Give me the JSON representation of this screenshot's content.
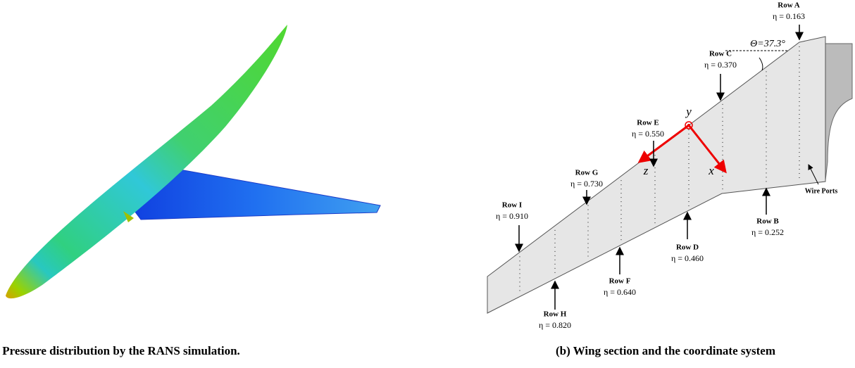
{
  "panel_a": {
    "caption": "(a) Pressure distribution by the RANS simulation."
  },
  "panel_b": {
    "caption": "(b) Wing section and the coordinate system",
    "angle_label": "Θ=37.3°",
    "axes": [
      "y",
      "z",
      "x"
    ],
    "wire_ports": "Wire Ports",
    "rows": [
      {
        "name": "Row A",
        "eta": "η = 0.163"
      },
      {
        "name": "Row B",
        "eta": "η = 0.252"
      },
      {
        "name": "Row C",
        "eta": "η = 0.370"
      },
      {
        "name": "Row D",
        "eta": "η = 0.460"
      },
      {
        "name": "Row E",
        "eta": "η = 0.550"
      },
      {
        "name": "Row F",
        "eta": "η = 0.640"
      },
      {
        "name": "Row G",
        "eta": "η = 0.730"
      },
      {
        "name": "Row H",
        "eta": "η = 0.820"
      },
      {
        "name": "Row I",
        "eta": "η = 0.910"
      }
    ]
  }
}
